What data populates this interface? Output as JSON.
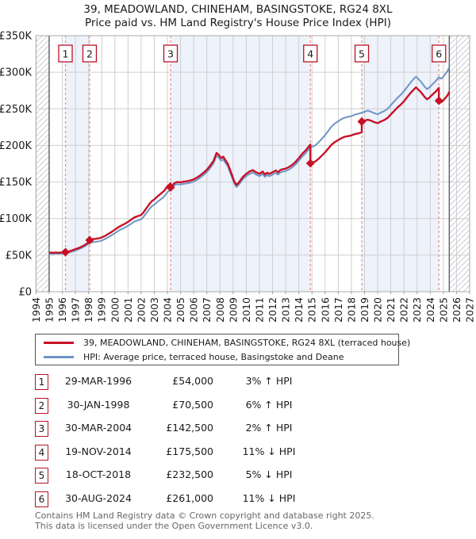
{
  "title": "39, MEADOWLAND, CHINEHAM, BASINGSTOKE, RG24 8XL",
  "subtitle": "Price paid vs. HM Land Registry's House Price Index (HPI)",
  "colors": {
    "price_line": "#c81126",
    "hpi_line": "#6e95c5",
    "band": "#edf2fb",
    "grid": "#cfcfcf",
    "border": "#aaaaaa",
    "data_boundary": "#5a5f6e",
    "sale_line": "#f58888",
    "sale_marker": "#c81126",
    "sale_box_border": "#bb1122",
    "hatch_line": "#c9cbd3"
  },
  "chart_data": {
    "type": "line",
    "title": "39, MEADOWLAND, CHINEHAM, BASINGSTOKE, RG24 8XL — Price paid vs. HM Land Registry's House Price Index (HPI)",
    "x_range": [
      1994,
      2027
    ],
    "y_range_thousands": [
      0,
      350
    ],
    "data_range": [
      1995.0,
      2025.45
    ],
    "x_tick_years": [
      1994,
      1995,
      1996,
      1997,
      1998,
      1999,
      2000,
      2001,
      2002,
      2003,
      2004,
      2005,
      2006,
      2007,
      2008,
      2009,
      2010,
      2011,
      2012,
      2013,
      2014,
      2015,
      2016,
      2017,
      2018,
      2019,
      2020,
      2021,
      2022,
      2023,
      2024,
      2025,
      2026,
      2027
    ],
    "y_tick_values": [
      0,
      50,
      100,
      150,
      200,
      250,
      300,
      350
    ],
    "y_tick_labels": [
      "£0",
      "£50K",
      "£100K",
      "£150K",
      "£200K",
      "£250K",
      "£300K",
      "£350K"
    ],
    "legend_position": "below",
    "grid": true,
    "bands": [
      [
        1996.24,
        1998.08
      ],
      [
        2004.24,
        2014.88
      ],
      [
        2018.79,
        2024.66
      ]
    ],
    "hatch": [
      [
        1994,
        1995
      ],
      [
        2025.45,
        2027
      ]
    ],
    "series": [
      {
        "name": "39, MEADOWLAND, CHINEHAM, BASINGSTOKE, RG24 8XL (terraced house)",
        "color": "#c81126",
        "derived_from": "hpi_scaled_by_sale_price",
        "segments": [
          {
            "from": 1995.0,
            "to": 1996.24,
            "factor": 1.03
          },
          {
            "from": 1996.24,
            "to": 1998.08,
            "factor": 1.03
          },
          {
            "from": 1998.08,
            "to": 2004.24,
            "factor": 1.06
          },
          {
            "from": 2004.24,
            "to": 2014.88,
            "factor": 1.02
          },
          {
            "from": 2014.88,
            "to": 2018.79,
            "factor": 0.89
          },
          {
            "from": 2018.79,
            "to": 2024.66,
            "factor": 0.95
          },
          {
            "from": 2024.66,
            "to": 2025.45,
            "factor": 0.89
          }
        ]
      },
      {
        "name": "HPI: Average price, terraced house, Basingstoke and Deane",
        "color": "#6e95c5",
        "points": [
          [
            1995.0,
            51.5
          ],
          [
            1995.17,
            52
          ],
          [
            1995.33,
            51.5
          ],
          [
            1995.5,
            52.2
          ],
          [
            1995.67,
            51.8
          ],
          [
            1995.83,
            52
          ],
          [
            1996.0,
            52
          ],
          [
            1996.24,
            52.4
          ],
          [
            1996.5,
            53.5
          ],
          [
            1996.75,
            54.8
          ],
          [
            1997.0,
            56.5
          ],
          [
            1997.25,
            58
          ],
          [
            1997.5,
            60
          ],
          [
            1997.75,
            62.5
          ],
          [
            1998.08,
            66.5
          ],
          [
            1998.33,
            67.8
          ],
          [
            1998.58,
            68.3
          ],
          [
            1998.83,
            69
          ],
          [
            1999.0,
            70
          ],
          [
            1999.25,
            72
          ],
          [
            1999.5,
            74.5
          ],
          [
            1999.75,
            77
          ],
          [
            2000.0,
            80
          ],
          [
            2000.25,
            83
          ],
          [
            2000.5,
            85.5
          ],
          [
            2000.75,
            87.5
          ],
          [
            2001.0,
            90
          ],
          [
            2001.25,
            93
          ],
          [
            2001.5,
            96
          ],
          [
            2001.75,
            97.5
          ],
          [
            2002.0,
            99
          ],
          [
            2002.17,
            102
          ],
          [
            2002.33,
            106
          ],
          [
            2002.5,
            110
          ],
          [
            2002.67,
            114
          ],
          [
            2002.83,
            117
          ],
          [
            2003.0,
            119
          ],
          [
            2003.25,
            123
          ],
          [
            2003.5,
            126.5
          ],
          [
            2003.75,
            130
          ],
          [
            2004.0,
            136
          ],
          [
            2004.24,
            139.7
          ],
          [
            2004.42,
            143.5
          ],
          [
            2004.58,
            146
          ],
          [
            2004.75,
            147
          ],
          [
            2005.0,
            146.5
          ],
          [
            2005.25,
            147.5
          ],
          [
            2005.5,
            148
          ],
          [
            2005.75,
            149
          ],
          [
            2006.0,
            150.5
          ],
          [
            2006.25,
            153
          ],
          [
            2006.5,
            156
          ],
          [
            2006.75,
            159.5
          ],
          [
            2007.0,
            163.5
          ],
          [
            2007.17,
            167
          ],
          [
            2007.33,
            171
          ],
          [
            2007.5,
            175
          ],
          [
            2007.74,
            186
          ],
          [
            2007.92,
            183
          ],
          [
            2008.08,
            179
          ],
          [
            2008.25,
            181
          ],
          [
            2008.42,
            176
          ],
          [
            2008.58,
            172
          ],
          [
            2008.75,
            164
          ],
          [
            2008.92,
            156
          ],
          [
            2009.08,
            148
          ],
          [
            2009.25,
            143
          ],
          [
            2009.42,
            146
          ],
          [
            2009.58,
            150
          ],
          [
            2009.75,
            154
          ],
          [
            2010.0,
            158
          ],
          [
            2010.25,
            161
          ],
          [
            2010.5,
            163
          ],
          [
            2010.75,
            160
          ],
          [
            2011.0,
            158
          ],
          [
            2011.25,
            161
          ],
          [
            2011.42,
            157
          ],
          [
            2011.58,
            159.5
          ],
          [
            2011.75,
            158
          ],
          [
            2012.0,
            160
          ],
          [
            2012.25,
            162.5
          ],
          [
            2012.42,
            160
          ],
          [
            2012.58,
            163
          ],
          [
            2012.75,
            164
          ],
          [
            2013.0,
            165
          ],
          [
            2013.25,
            167
          ],
          [
            2013.5,
            170
          ],
          [
            2013.75,
            174
          ],
          [
            2014.0,
            179
          ],
          [
            2014.25,
            184.5
          ],
          [
            2014.5,
            189
          ],
          [
            2014.88,
            197.2
          ],
          [
            2015.0,
            198
          ],
          [
            2015.25,
            200
          ],
          [
            2015.5,
            204
          ],
          [
            2015.75,
            209
          ],
          [
            2016.0,
            214
          ],
          [
            2016.25,
            220
          ],
          [
            2016.5,
            226
          ],
          [
            2016.75,
            230
          ],
          [
            2017.0,
            233
          ],
          [
            2017.25,
            236
          ],
          [
            2017.5,
            238
          ],
          [
            2018.0,
            240
          ],
          [
            2018.25,
            242
          ],
          [
            2018.5,
            243
          ],
          [
            2018.79,
            244.7
          ],
          [
            2019.0,
            246
          ],
          [
            2019.25,
            247.5
          ],
          [
            2019.5,
            246
          ],
          [
            2019.75,
            244
          ],
          [
            2020.0,
            242.5
          ],
          [
            2020.25,
            245
          ],
          [
            2020.5,
            247
          ],
          [
            2020.75,
            250
          ],
          [
            2021.0,
            255
          ],
          [
            2021.25,
            260
          ],
          [
            2021.5,
            265
          ],
          [
            2021.75,
            269
          ],
          [
            2022.0,
            274
          ],
          [
            2022.25,
            280
          ],
          [
            2022.5,
            286
          ],
          [
            2022.75,
            291
          ],
          [
            2022.92,
            294
          ],
          [
            2023.08,
            291
          ],
          [
            2023.25,
            288
          ],
          [
            2023.42,
            284
          ],
          [
            2023.58,
            280
          ],
          [
            2023.75,
            277
          ],
          [
            2023.92,
            279
          ],
          [
            2024.08,
            282
          ],
          [
            2024.25,
            285
          ],
          [
            2024.42,
            288
          ],
          [
            2024.66,
            293.3
          ],
          [
            2024.83,
            291
          ],
          [
            2025.0,
            294
          ],
          [
            2025.17,
            298
          ],
          [
            2025.33,
            302
          ],
          [
            2025.45,
            307
          ]
        ]
      }
    ],
    "sales": [
      {
        "n": "1",
        "year": 1996.24,
        "price_k": 54
      },
      {
        "n": "2",
        "year": 1998.08,
        "price_k": 70.5
      },
      {
        "n": "3",
        "year": 2004.24,
        "price_k": 142.5
      },
      {
        "n": "4",
        "year": 2014.88,
        "price_k": 175.5
      },
      {
        "n": "5",
        "year": 2018.79,
        "price_k": 232.5
      },
      {
        "n": "6",
        "year": 2024.66,
        "price_k": 261
      }
    ]
  },
  "legend": {
    "items": [
      {
        "label": "39, MEADOWLAND, CHINEHAM, BASINGSTOKE, RG24 8XL (terraced house)",
        "color": "#c81126"
      },
      {
        "label": "HPI: Average price, terraced house, Basingstoke and Deane",
        "color": "#6e95c5"
      }
    ]
  },
  "table": {
    "rows": [
      {
        "num": "1",
        "date": "29-MAR-1996",
        "price": "£54,000",
        "pct": "3% ↑ HPI"
      },
      {
        "num": "2",
        "date": "30-JAN-1998",
        "price": "£70,500",
        "pct": "6% ↑ HPI"
      },
      {
        "num": "3",
        "date": "30-MAR-2004",
        "price": "£142,500",
        "pct": "2% ↑ HPI"
      },
      {
        "num": "4",
        "date": "19-NOV-2014",
        "price": "£175,500",
        "pct": "11% ↓ HPI"
      },
      {
        "num": "5",
        "date": "18-OCT-2018",
        "price": "£232,500",
        "pct": "5% ↓ HPI"
      },
      {
        "num": "6",
        "date": "30-AUG-2024",
        "price": "£261,000",
        "pct": "11% ↓ HPI"
      }
    ]
  },
  "footer": {
    "line1": "Contains HM Land Registry data © Crown copyright and database right 2025.",
    "line2": "This data is licensed under the Open Government Licence v3.0."
  }
}
